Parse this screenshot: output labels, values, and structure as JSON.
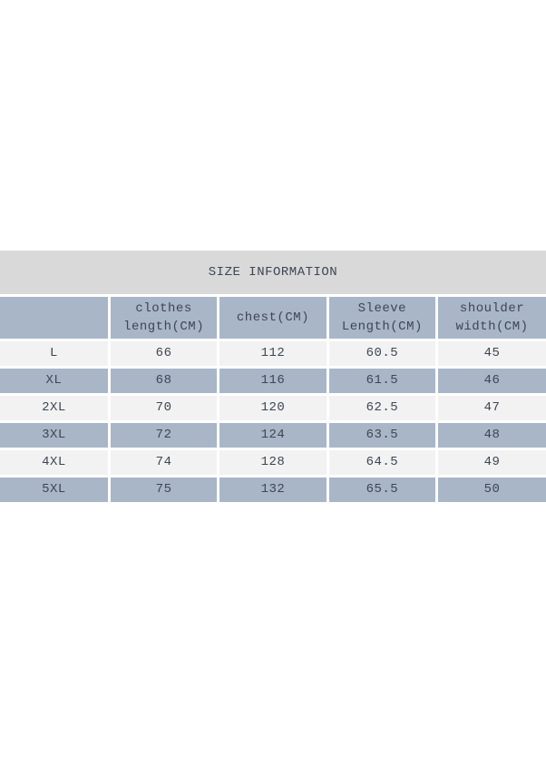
{
  "table": {
    "title": "SIZE INFORMATION",
    "columns": [
      "",
      "clothes length(CM)",
      "chest(CM)",
      "Sleeve Length(CM)",
      "shoulder width(CM)"
    ],
    "rows": [
      [
        "L",
        "66",
        "112",
        "60.5",
        "45"
      ],
      [
        "XL",
        "68",
        "116",
        "61.5",
        "46"
      ],
      [
        "2XL",
        "70",
        "120",
        "62.5",
        "47"
      ],
      [
        "3XL",
        "72",
        "124",
        "63.5",
        "48"
      ],
      [
        "4XL",
        "74",
        "128",
        "64.5",
        "49"
      ],
      [
        "5XL",
        "75",
        "132",
        "65.5",
        "50"
      ]
    ],
    "colors": {
      "title_band": "#d9d9d9",
      "header_row": "#a8b6c8",
      "row_light": "#f2f2f2",
      "row_blue": "#a8b6c8",
      "divider": "#ffffff",
      "title_text": "#3d3d3d",
      "cell_text": "#3e4654"
    }
  }
}
